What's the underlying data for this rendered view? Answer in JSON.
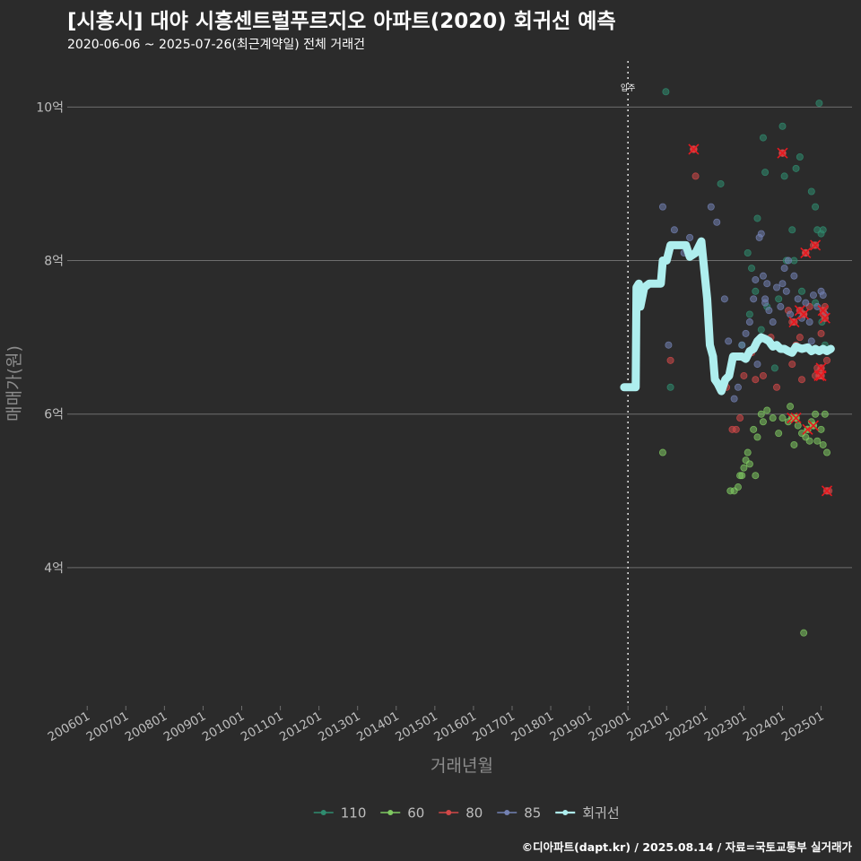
{
  "chart_data": {
    "type": "scatter",
    "title": "[시흥시] 대야 시흥센트럴푸르지오 아파트(2020) 회귀선 예측",
    "subtitle": "2020-06-06 ~ 2025-07-26(최근계약일) 전체 거래건",
    "xlabel": "거래년월",
    "ylabel": "매매가(원)",
    "caption": "©디아파트(dapt.kr) / 2025.08.14 / 자료=국토교통부 실거래가",
    "annotation": "입주",
    "annotation_x": 2020.0,
    "xlim": [
      2005.6,
      2025.8
    ],
    "ylim": [
      2.2,
      10.6
    ],
    "x_ticks": [
      2006,
      2007,
      2008,
      2009,
      2010,
      2011,
      2012,
      2013,
      2014,
      2015,
      2016,
      2017,
      2018,
      2019,
      2020,
      2021,
      2022,
      2023,
      2024,
      2025
    ],
    "x_tick_labels": [
      "200601",
      "200701",
      "200801",
      "200901",
      "201001",
      "201101",
      "201201",
      "201301",
      "201401",
      "201501",
      "201601",
      "201701",
      "201801",
      "201901",
      "202001",
      "202101",
      "202201",
      "202301",
      "202401",
      "202501"
    ],
    "y_ticks": [
      4,
      6,
      8,
      10
    ],
    "y_tick_labels": [
      "4억",
      "6억",
      "8억",
      "10억"
    ],
    "colors": {
      "110": "#2f8c6f",
      "60": "#7fc962",
      "80": "#d24848",
      "85": "#7381b3",
      "회귀선": "#aeeeee",
      "highlight": "#e8181f",
      "background": "#2b2b2b",
      "grid": "#6e6e6e"
    },
    "legend": [
      {
        "key": "110",
        "label": "110"
      },
      {
        "key": "60",
        "label": "60"
      },
      {
        "key": "80",
        "label": "80"
      },
      {
        "key": "85",
        "label": "85"
      },
      {
        "key": "회귀선",
        "label": "회귀선"
      }
    ],
    "series": [
      {
        "name": "110",
        "points": [
          [
            2020.98,
            10.2
          ],
          [
            2022.4,
            9.0
          ],
          [
            2023.1,
            8.1
          ],
          [
            2023.2,
            7.9
          ],
          [
            2023.3,
            7.6
          ],
          [
            2023.45,
            7.1
          ],
          [
            2023.5,
            9.6
          ],
          [
            2023.55,
            9.15
          ],
          [
            2023.6,
            7.4
          ],
          [
            2023.7,
            6.9
          ],
          [
            2023.8,
            6.6
          ],
          [
            2023.9,
            7.5
          ],
          [
            2024.0,
            9.75
          ],
          [
            2024.05,
            9.1
          ],
          [
            2024.1,
            8.0
          ],
          [
            2024.25,
            8.4
          ],
          [
            2024.35,
            9.2
          ],
          [
            2024.45,
            9.35
          ],
          [
            2024.6,
            8.1
          ],
          [
            2024.75,
            8.9
          ],
          [
            2024.85,
            8.7
          ],
          [
            2024.9,
            8.4
          ],
          [
            2024.95,
            10.05
          ],
          [
            2025.0,
            8.35
          ],
          [
            2025.05,
            8.4
          ],
          [
            2025.1,
            6.9
          ],
          [
            2022.95,
            6.9
          ],
          [
            2021.1,
            6.35
          ],
          [
            2023.15,
            7.3
          ],
          [
            2024.5,
            7.6
          ],
          [
            2024.85,
            7.45
          ],
          [
            2025.02,
            7.2
          ],
          [
            2024.3,
            8.0
          ],
          [
            2023.35,
            8.55
          ]
        ]
      },
      {
        "name": "60",
        "points": [
          [
            2020.9,
            5.5
          ],
          [
            2022.65,
            5.0
          ],
          [
            2022.75,
            5.0
          ],
          [
            2022.85,
            5.05
          ],
          [
            2022.9,
            5.2
          ],
          [
            2022.95,
            5.2
          ],
          [
            2023.0,
            5.3
          ],
          [
            2023.05,
            5.4
          ],
          [
            2023.1,
            5.5
          ],
          [
            2023.15,
            5.35
          ],
          [
            2023.25,
            5.8
          ],
          [
            2023.35,
            5.7
          ],
          [
            2023.45,
            6.0
          ],
          [
            2023.5,
            5.9
          ],
          [
            2023.6,
            6.05
          ],
          [
            2023.75,
            5.95
          ],
          [
            2023.9,
            5.75
          ],
          [
            2024.0,
            5.95
          ],
          [
            2024.15,
            5.9
          ],
          [
            2024.3,
            5.6
          ],
          [
            2024.4,
            5.85
          ],
          [
            2024.5,
            5.75
          ],
          [
            2024.6,
            5.7
          ],
          [
            2024.7,
            5.65
          ],
          [
            2024.75,
            5.9
          ],
          [
            2024.85,
            6.0
          ],
          [
            2024.9,
            5.65
          ],
          [
            2025.0,
            5.8
          ],
          [
            2025.05,
            5.6
          ],
          [
            2025.1,
            6.0
          ],
          [
            2025.15,
            5.5
          ],
          [
            2024.55,
            3.15
          ],
          [
            2023.3,
            5.2
          ],
          [
            2024.2,
            6.1
          ]
        ]
      },
      {
        "name": "80",
        "points": [
          [
            2021.1,
            6.7
          ],
          [
            2021.7,
            9.45
          ],
          [
            2021.75,
            9.1
          ],
          [
            2022.55,
            6.35
          ],
          [
            2022.7,
            5.8
          ],
          [
            2022.8,
            5.8
          ],
          [
            2022.9,
            5.95
          ],
          [
            2023.0,
            6.5
          ],
          [
            2023.2,
            6.8
          ],
          [
            2023.3,
            6.45
          ],
          [
            2023.5,
            6.5
          ],
          [
            2023.7,
            7.0
          ],
          [
            2023.85,
            6.35
          ],
          [
            2024.0,
            9.4
          ],
          [
            2024.15,
            7.35
          ],
          [
            2024.25,
            7.2
          ],
          [
            2024.35,
            6.9
          ],
          [
            2024.45,
            7.0
          ],
          [
            2024.55,
            7.3
          ],
          [
            2024.6,
            8.1
          ],
          [
            2024.7,
            7.4
          ],
          [
            2024.8,
            8.2
          ],
          [
            2024.85,
            6.5
          ],
          [
            2024.9,
            6.6
          ],
          [
            2024.95,
            6.55
          ],
          [
            2025.0,
            7.05
          ],
          [
            2025.05,
            7.3
          ],
          [
            2025.1,
            7.4
          ],
          [
            2025.15,
            6.7
          ],
          [
            2025.2,
            5.0
          ],
          [
            2024.5,
            6.45
          ],
          [
            2024.25,
            6.65
          ]
        ]
      },
      {
        "name": "85",
        "points": [
          [
            2020.9,
            8.7
          ],
          [
            2021.05,
            6.9
          ],
          [
            2021.2,
            8.4
          ],
          [
            2021.45,
            8.1
          ],
          [
            2021.6,
            8.3
          ],
          [
            2022.3,
            8.5
          ],
          [
            2022.5,
            7.5
          ],
          [
            2022.6,
            6.95
          ],
          [
            2022.75,
            6.2
          ],
          [
            2022.85,
            6.35
          ],
          [
            2022.95,
            6.9
          ],
          [
            2023.05,
            7.05
          ],
          [
            2023.15,
            7.2
          ],
          [
            2023.25,
            7.5
          ],
          [
            2023.3,
            7.75
          ],
          [
            2023.4,
            8.3
          ],
          [
            2023.45,
            8.35
          ],
          [
            2023.5,
            7.8
          ],
          [
            2023.55,
            7.5
          ],
          [
            2023.6,
            7.7
          ],
          [
            2023.65,
            7.35
          ],
          [
            2023.75,
            7.2
          ],
          [
            2023.85,
            7.65
          ],
          [
            2023.95,
            7.4
          ],
          [
            2024.0,
            7.7
          ],
          [
            2024.05,
            7.9
          ],
          [
            2024.1,
            7.6
          ],
          [
            2024.2,
            7.3
          ],
          [
            2024.3,
            7.8
          ],
          [
            2024.4,
            7.5
          ],
          [
            2024.5,
            7.25
          ],
          [
            2024.6,
            7.45
          ],
          [
            2024.7,
            7.2
          ],
          [
            2024.8,
            7.55
          ],
          [
            2024.9,
            7.4
          ],
          [
            2025.0,
            7.6
          ],
          [
            2025.05,
            7.55
          ],
          [
            2025.1,
            7.3
          ],
          [
            2023.35,
            6.65
          ],
          [
            2023.55,
            7.45
          ],
          [
            2024.15,
            8.0
          ],
          [
            2024.75,
            6.95
          ],
          [
            2022.15,
            8.7
          ]
        ]
      }
    ],
    "highlights": [
      {
        "series": "80",
        "x": 2021.7,
        "y": 9.45
      },
      {
        "series": "80",
        "x": 2024.0,
        "y": 9.4
      },
      {
        "series": "80",
        "x": 2024.6,
        "y": 8.1
      },
      {
        "series": "80",
        "x": 2024.85,
        "y": 8.2
      },
      {
        "series": "80",
        "x": 2024.45,
        "y": 7.35
      },
      {
        "series": "80",
        "x": 2024.3,
        "y": 7.2
      },
      {
        "series": "80",
        "x": 2024.55,
        "y": 7.3
      },
      {
        "series": "80",
        "x": 2025.05,
        "y": 7.35
      },
      {
        "series": "80",
        "x": 2025.1,
        "y": 7.25
      },
      {
        "series": "80",
        "x": 2025.0,
        "y": 6.6
      },
      {
        "series": "80",
        "x": 2024.95,
        "y": 6.5
      },
      {
        "series": "80",
        "x": 2025.0,
        "y": 6.5
      },
      {
        "series": "60",
        "x": 2024.25,
        "y": 5.95
      },
      {
        "series": "60",
        "x": 2024.65,
        "y": 5.8
      },
      {
        "series": "60",
        "x": 2024.8,
        "y": 5.85
      },
      {
        "series": "60",
        "x": 2024.35,
        "y": 5.95
      },
      {
        "series": "80",
        "x": 2025.15,
        "y": 5.0
      }
    ],
    "regression": [
      [
        2019.9,
        6.35
      ],
      [
        2020.2,
        6.35
      ],
      [
        2020.22,
        7.65
      ],
      [
        2020.28,
        7.7
      ],
      [
        2020.32,
        7.4
      ],
      [
        2020.42,
        7.65
      ],
      [
        2020.55,
        7.7
      ],
      [
        2020.7,
        7.7
      ],
      [
        2020.85,
        7.7
      ],
      [
        2020.9,
        8.0
      ],
      [
        2021.0,
        8.0
      ],
      [
        2021.1,
        8.2
      ],
      [
        2021.3,
        8.2
      ],
      [
        2021.5,
        8.2
      ],
      [
        2021.6,
        8.05
      ],
      [
        2021.75,
        8.1
      ],
      [
        2021.9,
        8.25
      ],
      [
        2022.05,
        7.5
      ],
      [
        2022.12,
        6.9
      ],
      [
        2022.2,
        6.75
      ],
      [
        2022.25,
        6.45
      ],
      [
        2022.32,
        6.4
      ],
      [
        2022.42,
        6.3
      ],
      [
        2022.52,
        6.45
      ],
      [
        2022.62,
        6.5
      ],
      [
        2022.72,
        6.75
      ],
      [
        2022.85,
        6.75
      ],
      [
        2022.95,
        6.75
      ],
      [
        2023.05,
        6.72
      ],
      [
        2023.15,
        6.82
      ],
      [
        2023.25,
        6.85
      ],
      [
        2023.35,
        6.95
      ],
      [
        2023.45,
        7.0
      ],
      [
        2023.55,
        6.98
      ],
      [
        2023.65,
        6.95
      ],
      [
        2023.75,
        6.88
      ],
      [
        2023.85,
        6.9
      ],
      [
        2023.95,
        6.85
      ],
      [
        2024.05,
        6.85
      ],
      [
        2024.15,
        6.82
      ],
      [
        2024.25,
        6.8
      ],
      [
        2024.35,
        6.88
      ],
      [
        2024.5,
        6.85
      ],
      [
        2024.65,
        6.87
      ],
      [
        2024.75,
        6.82
      ],
      [
        2024.85,
        6.85
      ],
      [
        2024.95,
        6.82
      ],
      [
        2025.05,
        6.85
      ],
      [
        2025.15,
        6.82
      ],
      [
        2025.25,
        6.85
      ]
    ]
  }
}
